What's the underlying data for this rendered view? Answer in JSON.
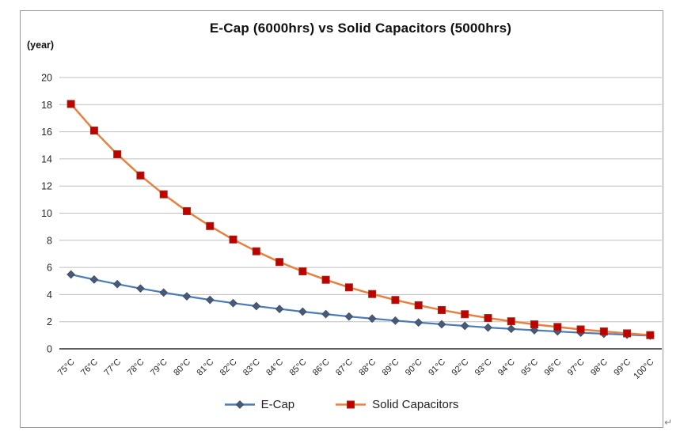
{
  "page": {
    "paragraph_mark": "↵"
  },
  "chart": {
    "title": "E-Cap (6000hrs) vs Solid Capacitors (5000hrs)",
    "y_unit_label": "(year)"
  },
  "colors": {
    "gridline": "#bfbfbf",
    "axis": "#000000",
    "tick_label": "#262626",
    "frame_border": "#9a9a9a"
  },
  "chart_data": {
    "type": "line",
    "title": "E-Cap (6000hrs) vs Solid Capacitors (5000hrs)",
    "xlabel": "",
    "ylabel": "(year)",
    "ylim": [
      0,
      20
    ],
    "ytick_step": 2,
    "grid": true,
    "legend_position": "bottom",
    "categories": [
      "75°C",
      "76°C",
      "77°C",
      "78°C",
      "79°C",
      "80°C",
      "81°C",
      "82°C",
      "83°C",
      "84°C",
      "85°C",
      "86°C",
      "87°C",
      "88°C",
      "89°C",
      "90°C",
      "91°C",
      "92°C",
      "93°C",
      "94°C",
      "95°C",
      "96°C",
      "97°C",
      "98°C",
      "99°C",
      "100°C"
    ],
    "series": [
      {
        "name": "E-Cap",
        "marker": "diamond",
        "line_color": "#4a7cb8",
        "marker_color": "#485a77",
        "marker_edge": "#3c4c66",
        "values": [
          5.48,
          5.11,
          4.77,
          4.45,
          4.15,
          3.87,
          3.61,
          3.37,
          3.15,
          2.94,
          2.74,
          2.56,
          2.38,
          2.23,
          2.08,
          1.94,
          1.81,
          1.69,
          1.57,
          1.47,
          1.37,
          1.28,
          1.19,
          1.11,
          1.04,
          0.97
        ]
      },
      {
        "name": "Solid Capacitors",
        "marker": "square",
        "line_color": "#e8803f",
        "marker_color": "#c00000",
        "marker_edge": "#9e2b17",
        "values": [
          18.05,
          16.09,
          14.34,
          12.78,
          11.39,
          10.15,
          9.05,
          8.06,
          7.19,
          6.4,
          5.71,
          5.09,
          4.53,
          4.04,
          3.6,
          3.21,
          2.86,
          2.55,
          2.27,
          2.03,
          1.8,
          1.61,
          1.43,
          1.28,
          1.14,
          1.01
        ]
      }
    ]
  }
}
